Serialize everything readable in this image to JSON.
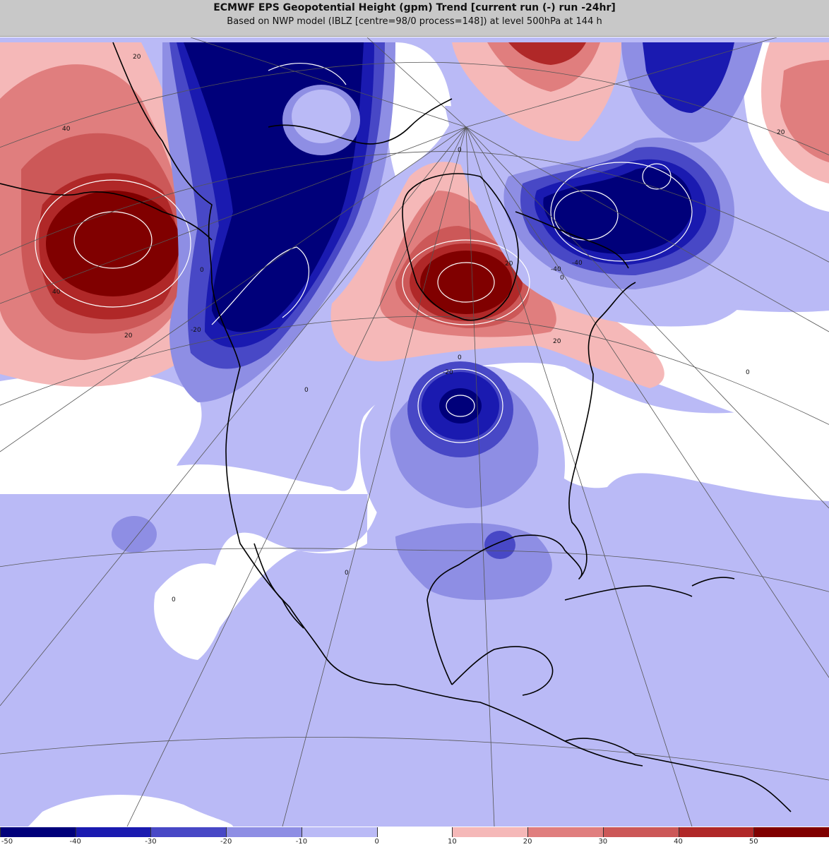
{
  "header": {
    "title": "ECMWF EPS Geopotential Height (gpm) Trend [current run (-) run -24hr]",
    "subtitle": "Based on NWP model (IBLZ [centre=98/0 process=148]) at level 500hPa at 144 h"
  },
  "colors": {
    "neg50": "#00007a",
    "neg40": "#1a1ab0",
    "neg30": "#4848c6",
    "neg20": "#8e8ee4",
    "neg10": "#babaf6",
    "zero": "#ffffff",
    "pos10": "#f5b8b8",
    "pos20": "#e07e7e",
    "pos30": "#cc5858",
    "pos40": "#b02828",
    "pos50": "#800000"
  },
  "colorbar": {
    "labels": [
      "-50",
      "-40",
      "-30",
      "-20",
      "-10",
      "0",
      "10",
      "20",
      "30",
      "40",
      "50"
    ],
    "swatches": [
      "#00007a",
      "#1a1ab0",
      "#4848c6",
      "#8e8ee4",
      "#babaf6",
      "#ffffff",
      "#f5b8b8",
      "#e07e7e",
      "#cc5858",
      "#b02828",
      "#800000"
    ]
  },
  "contour_labels": [
    "20",
    "40",
    "40",
    "20",
    "0",
    "0",
    "-20",
    "-20",
    "-40",
    "-40",
    "0",
    "20",
    "0",
    "20",
    "20",
    "0",
    "0",
    "0",
    "0"
  ]
}
